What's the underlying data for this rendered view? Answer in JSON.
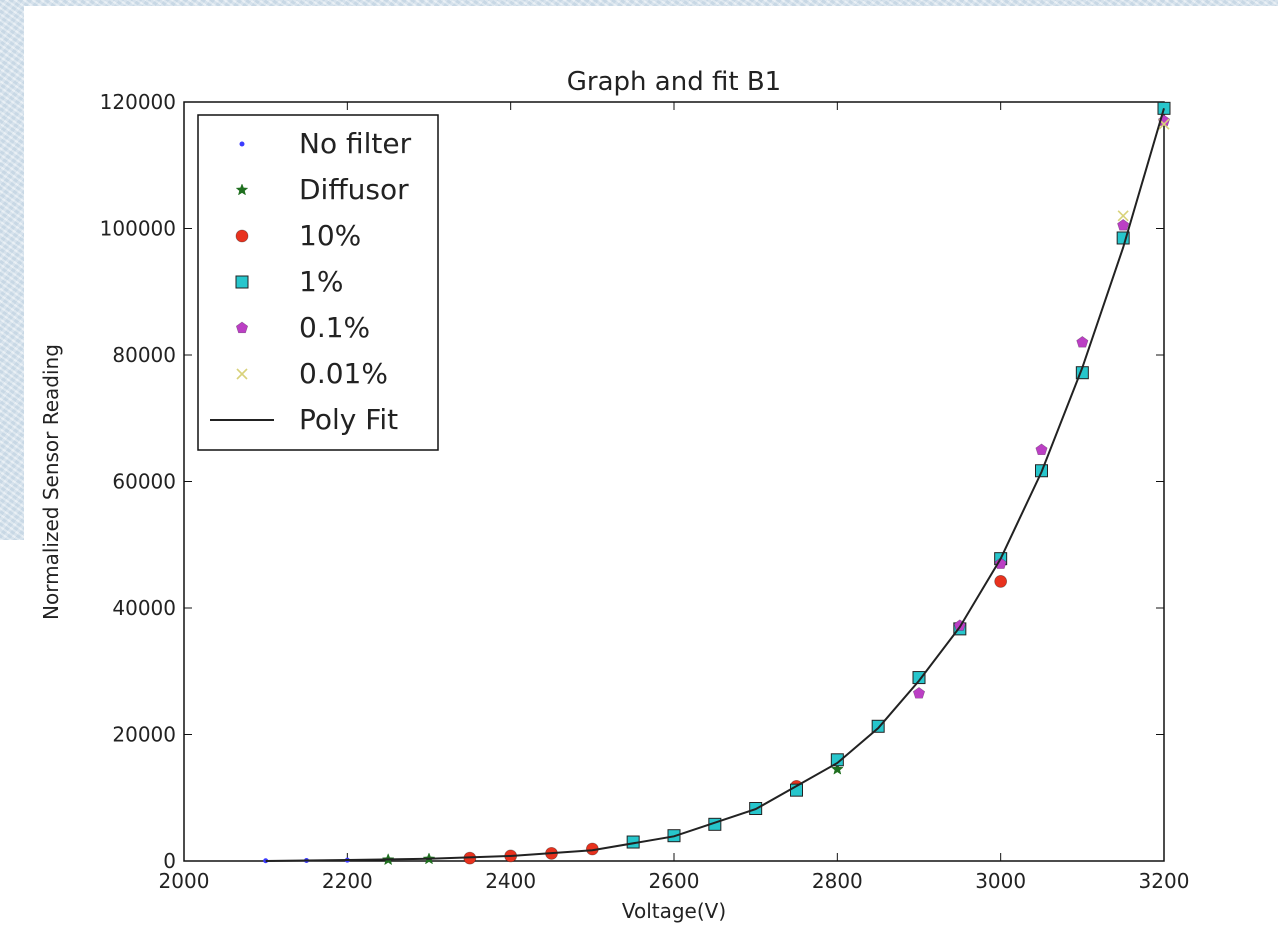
{
  "chart_data": {
    "type": "scatter",
    "title": "Graph and fit B1",
    "xlabel": "Voltage(V)",
    "ylabel": "Normalized Sensor Reading",
    "xlim": [
      2000,
      3200
    ],
    "ylim": [
      0,
      120000
    ],
    "x_ticks": [
      2000,
      2200,
      2400,
      2600,
      2800,
      3000,
      3200
    ],
    "y_ticks": [
      0,
      20000,
      40000,
      60000,
      80000,
      100000,
      120000
    ],
    "grid": false,
    "legend_position": "top-left",
    "series": [
      {
        "name": "No filter",
        "marker": "point",
        "color": "#3b3bff",
        "points": [
          [
            2100,
            40
          ],
          [
            2150,
            80
          ],
          [
            2200,
            130
          ]
        ]
      },
      {
        "name": "Diffusor",
        "marker": "star",
        "color": "#1f6f1f",
        "points": [
          [
            2250,
            200
          ],
          [
            2300,
            320
          ],
          [
            2800,
            14500
          ]
        ]
      },
      {
        "name": "10%",
        "marker": "circle",
        "color": "#e8321e",
        "points": [
          [
            2350,
            450
          ],
          [
            2400,
            800
          ],
          [
            2450,
            1200
          ],
          [
            2500,
            1900
          ],
          [
            2750,
            11800
          ],
          [
            3000,
            44200
          ]
        ]
      },
      {
        "name": "1%",
        "marker": "square",
        "color": "#27c6cc",
        "points": [
          [
            2550,
            3000
          ],
          [
            2600,
            4000
          ],
          [
            2650,
            5800
          ],
          [
            2700,
            8300
          ],
          [
            2750,
            11200
          ],
          [
            2800,
            16000
          ],
          [
            2850,
            21300
          ],
          [
            2900,
            29000
          ],
          [
            2950,
            36700
          ],
          [
            3000,
            47800
          ],
          [
            3050,
            61700
          ],
          [
            3100,
            77200
          ],
          [
            3150,
            98500
          ],
          [
            3200,
            119000
          ]
        ]
      },
      {
        "name": "0.1%",
        "marker": "pentagon",
        "color": "#bb3fc4",
        "points": [
          [
            2900,
            26500
          ],
          [
            2950,
            37200
          ],
          [
            3000,
            47000
          ],
          [
            3050,
            65000
          ],
          [
            3100,
            82000
          ],
          [
            3150,
            100500
          ],
          [
            3200,
            117000
          ]
        ]
      },
      {
        "name": "0.01%",
        "marker": "x",
        "color": "#d8d27a",
        "points": [
          [
            3150,
            102000
          ],
          [
            3200,
            116500
          ]
        ]
      },
      {
        "name": "Poly Fit",
        "marker": "line",
        "color": "#222222",
        "curve": {
          "x": [
            2100,
            2200,
            2300,
            2400,
            2500,
            2600,
            2700,
            2800,
            2850,
            2900,
            2950,
            3000,
            3050,
            3100,
            3150,
            3200
          ],
          "y": [
            0,
            150,
            350,
            800,
            1700,
            3900,
            8200,
            15500,
            21000,
            28500,
            37000,
            47800,
            61500,
            78000,
            97000,
            119000
          ]
        }
      }
    ]
  }
}
